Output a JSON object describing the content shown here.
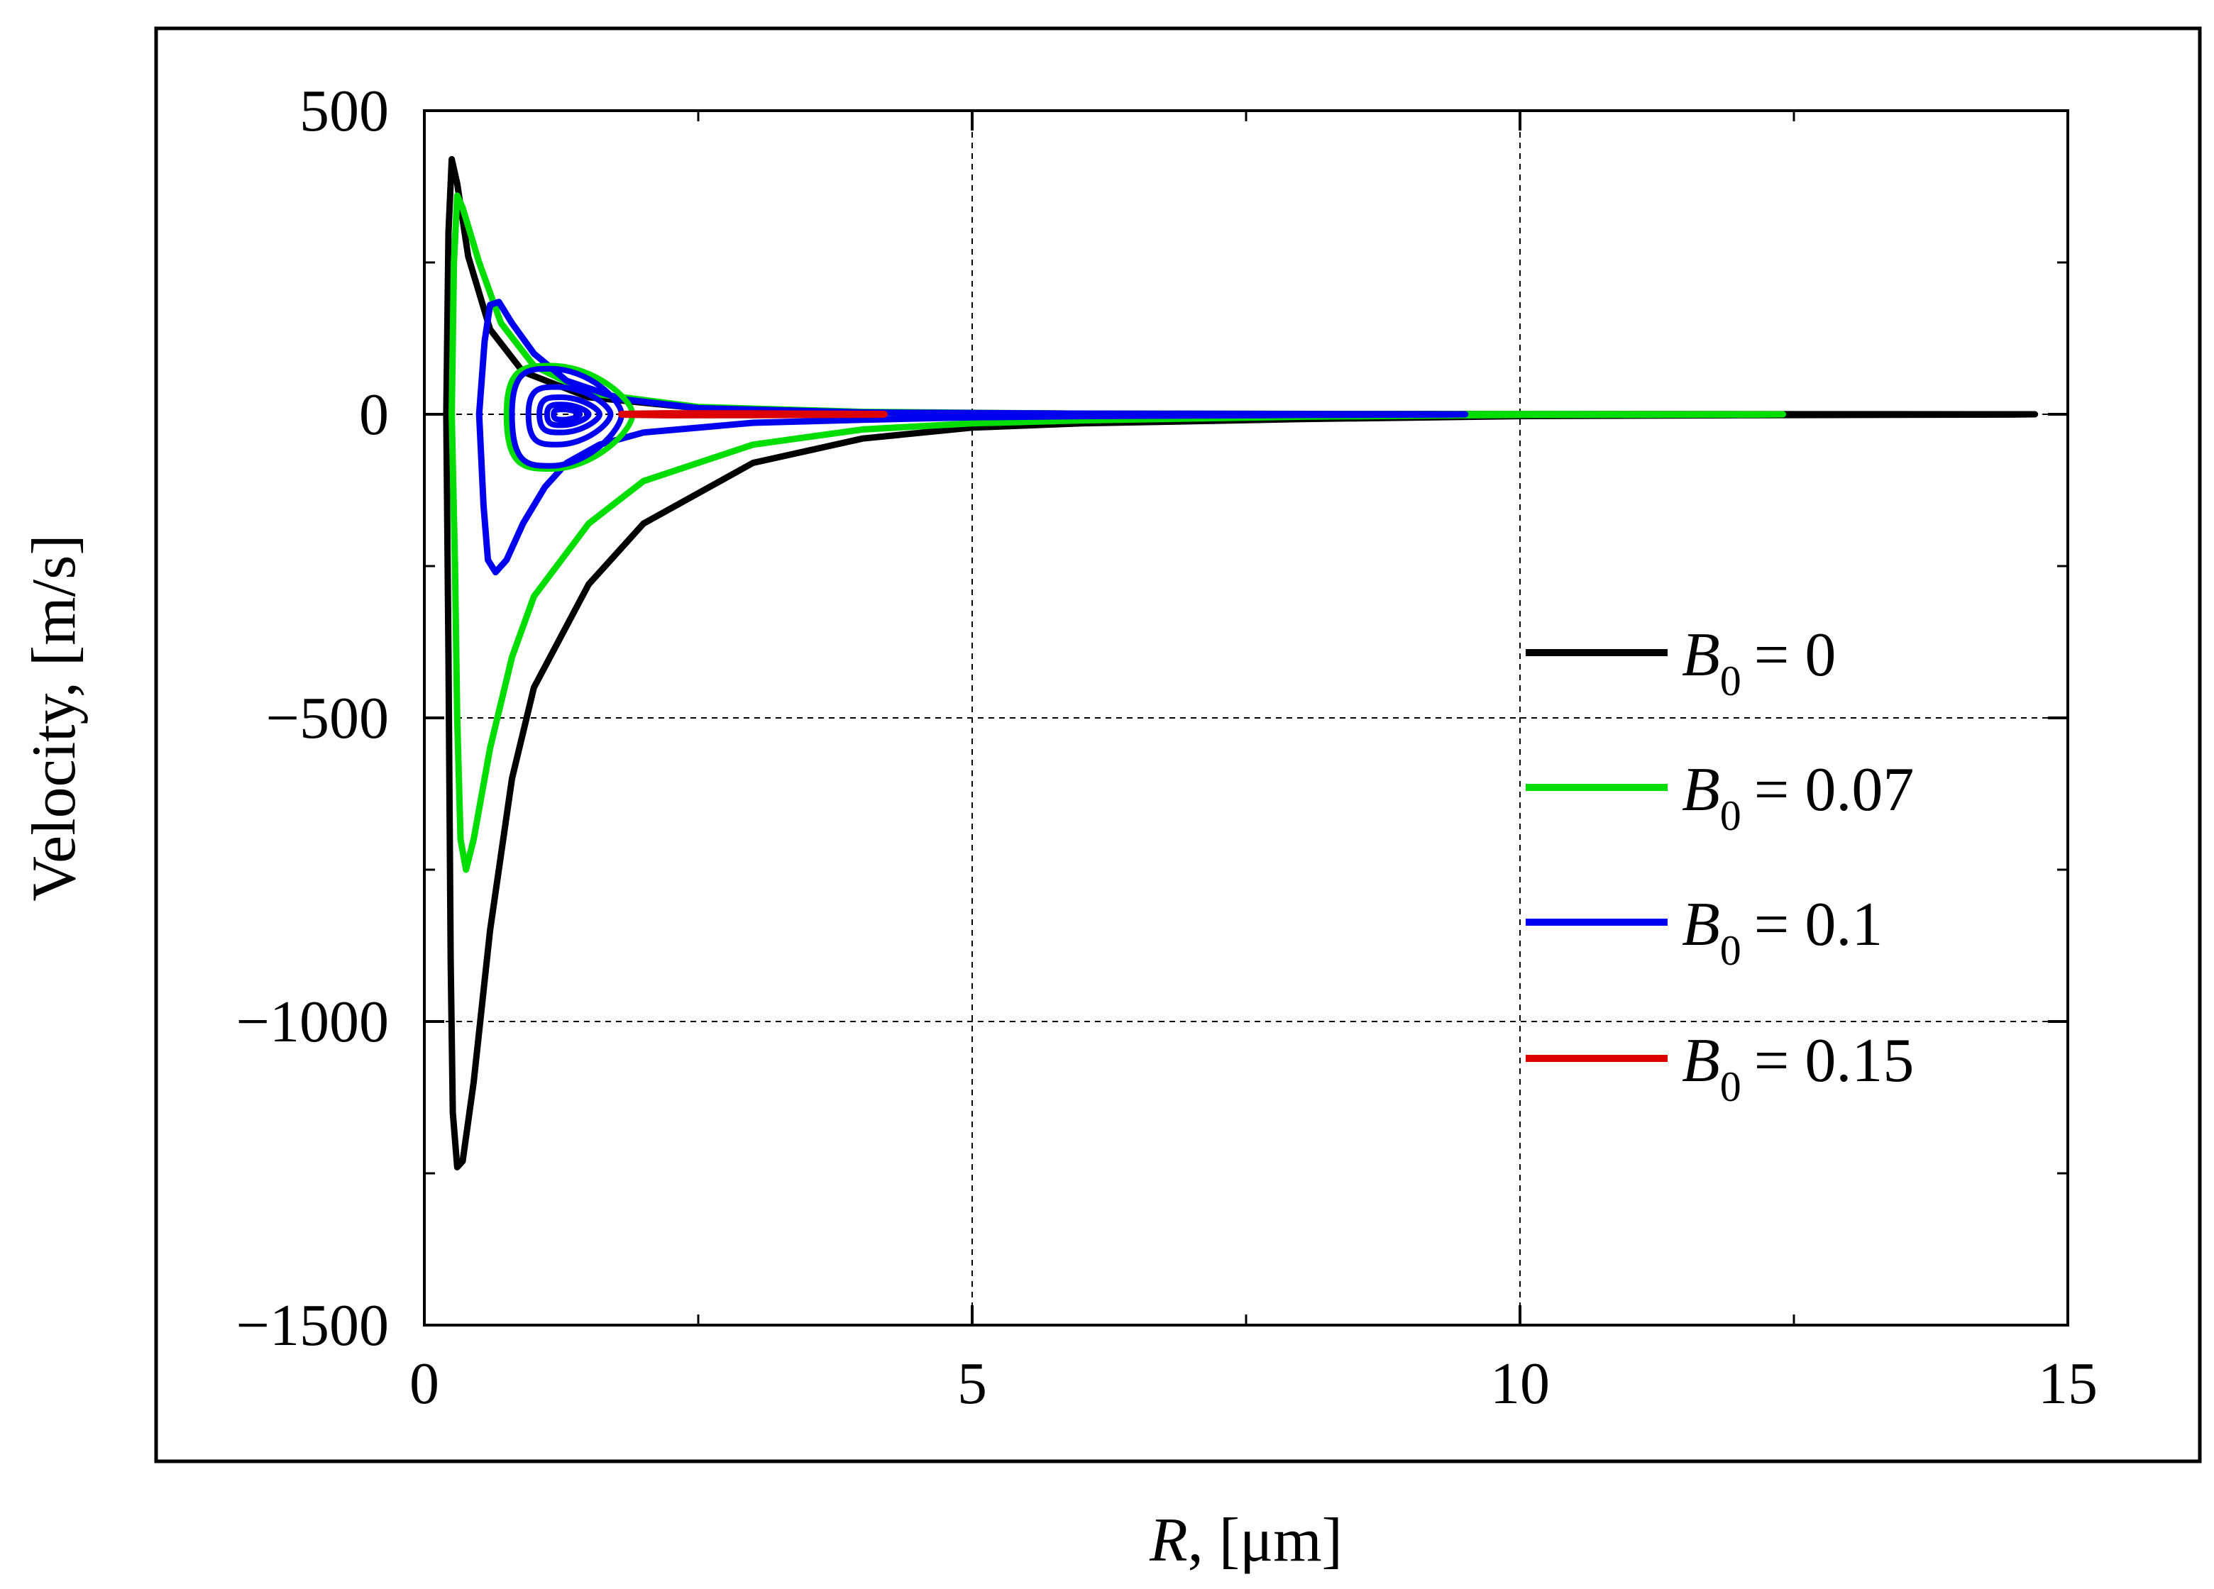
{
  "chart_data": {
    "type": "line",
    "xlabel_italic": "R",
    "xlabel_rest": ", [μm]",
    "ylabel": "Velocity, [m/s]",
    "xlim": [
      0,
      15
    ],
    "ylim": [
      -1500,
      500
    ],
    "x_ticks": [
      {
        "value": 0,
        "label": "0"
      },
      {
        "value": 5,
        "label": "5"
      },
      {
        "value": 10,
        "label": "10"
      },
      {
        "value": 15,
        "label": "15"
      }
    ],
    "y_ticks": [
      {
        "value": 500,
        "label": "500"
      },
      {
        "value": 0,
        "label": "0"
      },
      {
        "value": -500,
        "label": "−500"
      },
      {
        "value": -1000,
        "label": "−1000"
      },
      {
        "value": -1500,
        "label": "−1500"
      }
    ],
    "grid": "dashed at major ticks",
    "legend_position": "right-center",
    "series": [
      {
        "legend_var": "B",
        "legend_sub": "0",
        "legend_val": "= 0",
        "color": "#000000",
        "points": [
          [
            0.2,
            0
          ],
          [
            0.22,
            300
          ],
          [
            0.25,
            420
          ],
          [
            0.3,
            380
          ],
          [
            0.4,
            260
          ],
          [
            0.6,
            140
          ],
          [
            0.9,
            70
          ],
          [
            1.5,
            28
          ],
          [
            2.5,
            10
          ],
          [
            4,
            3
          ],
          [
            6,
            1
          ],
          [
            10,
            0.3
          ],
          [
            14.7,
            0
          ],
          [
            14.5,
            -0.5
          ],
          [
            12,
            -1.5
          ],
          [
            10,
            -3
          ],
          [
            8,
            -8
          ],
          [
            6,
            -15
          ],
          [
            5,
            -22
          ],
          [
            4,
            -40
          ],
          [
            3,
            -80
          ],
          [
            2,
            -180
          ],
          [
            1.5,
            -280
          ],
          [
            1,
            -450
          ],
          [
            0.8,
            -600
          ],
          [
            0.6,
            -850
          ],
          [
            0.45,
            -1100
          ],
          [
            0.35,
            -1230
          ],
          [
            0.3,
            -1240
          ],
          [
            0.26,
            -1150
          ],
          [
            0.24,
            -900
          ],
          [
            0.22,
            -400
          ],
          [
            0.2,
            0
          ]
        ]
      },
      {
        "legend_var": "B",
        "legend_sub": "0",
        "legend_val": "= 0.07",
        "color": "#00dd00",
        "points": [
          [
            0.25,
            0
          ],
          [
            0.27,
            250
          ],
          [
            0.3,
            360
          ],
          [
            0.35,
            340
          ],
          [
            0.5,
            250
          ],
          [
            0.7,
            150
          ],
          [
            1,
            80
          ],
          [
            1.5,
            35
          ],
          [
            2.5,
            12
          ],
          [
            4,
            4
          ],
          [
            6,
            1
          ],
          [
            9,
            0.4
          ],
          [
            12.4,
            0
          ],
          [
            12.2,
            -0.5
          ],
          [
            10,
            -1
          ],
          [
            8,
            -4
          ],
          [
            6,
            -10
          ],
          [
            5,
            -15
          ],
          [
            4,
            -25
          ],
          [
            3,
            -50
          ],
          [
            2,
            -110
          ],
          [
            1.5,
            -180
          ],
          [
            1,
            -300
          ],
          [
            0.8,
            -400
          ],
          [
            0.6,
            -550
          ],
          [
            0.45,
            -700
          ],
          [
            0.38,
            -750
          ],
          [
            0.33,
            -700
          ],
          [
            0.3,
            -500
          ],
          [
            0.28,
            -250
          ],
          [
            0.25,
            0
          ]
        ]
      },
      {
        "legend_var": "B",
        "legend_sub": "0",
        "legend_val": "= 0.1",
        "color": "#0000ee",
        "points": [
          [
            0.5,
            0
          ],
          [
            0.55,
            120
          ],
          [
            0.6,
            180
          ],
          [
            0.68,
            185
          ],
          [
            0.8,
            150
          ],
          [
            1,
            100
          ],
          [
            1.3,
            55
          ],
          [
            1.8,
            25
          ],
          [
            2.5,
            10
          ],
          [
            4,
            3
          ],
          [
            6,
            1
          ],
          [
            9.5,
            0
          ],
          [
            9.3,
            -0.5
          ],
          [
            8,
            -1
          ],
          [
            6,
            -3
          ],
          [
            5,
            -5
          ],
          [
            4,
            -9
          ],
          [
            3,
            -14
          ],
          [
            2,
            -30
          ],
          [
            1.6,
            -50
          ],
          [
            1.3,
            -80
          ],
          [
            1.1,
            -120
          ],
          [
            0.9,
            -180
          ],
          [
            0.75,
            -240
          ],
          [
            0.65,
            -260
          ],
          [
            0.58,
            -240
          ],
          [
            0.54,
            -150
          ],
          [
            0.5,
            0
          ]
        ]
      },
      {
        "legend_var": "B",
        "legend_sub": "0",
        "legend_val": "= 0.15",
        "color": "#dd0000",
        "points": [
          [
            1.8,
            0
          ],
          [
            2.2,
            1
          ],
          [
            3,
            0.8
          ],
          [
            4.2,
            0
          ],
          [
            3,
            -0.8
          ],
          [
            2.2,
            -1
          ],
          [
            1.8,
            0
          ]
        ]
      }
    ],
    "blue_spiral_loops": [
      {
        "xmin": 0.8,
        "xmax": 1.8,
        "ymax": 75,
        "ymin": -85
      },
      {
        "xmin": 0.95,
        "xmax": 1.7,
        "ymax": 45,
        "ymin": -50
      },
      {
        "xmin": 1.05,
        "xmax": 1.6,
        "ymax": 28,
        "ymin": -30
      },
      {
        "xmin": 1.12,
        "xmax": 1.5,
        "ymax": 16,
        "ymin": -18
      },
      {
        "xmin": 1.18,
        "xmax": 1.42,
        "ymax": 8,
        "ymin": -9
      }
    ],
    "green_spiral_loops": [
      {
        "xmin": 0.75,
        "xmax": 1.9,
        "ymax": 80,
        "ymin": -90
      }
    ]
  }
}
